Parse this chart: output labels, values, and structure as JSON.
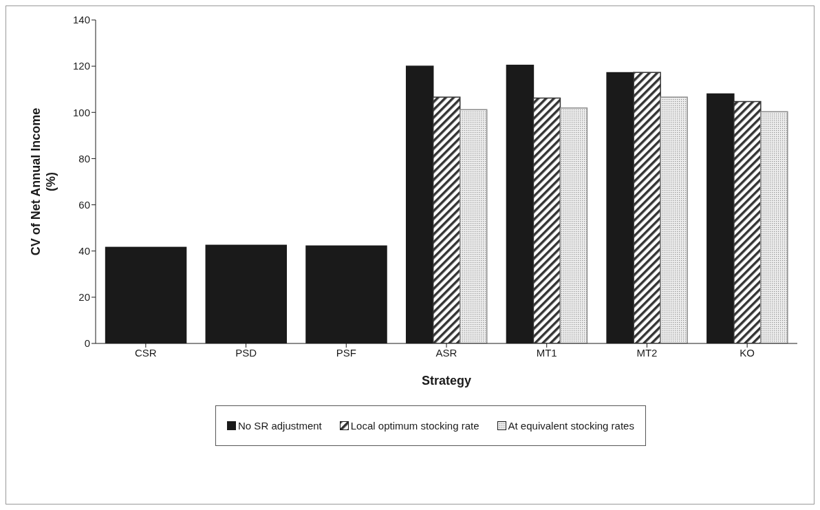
{
  "chart_data": {
    "type": "bar",
    "xlabel": "Strategy",
    "ylabel": "CV of Net Annual Income\n(%)",
    "categories": [
      "CSR",
      "PSD",
      "PSF",
      "ASR",
      "MT1",
      "MT2",
      "KO"
    ],
    "series": [
      {
        "name": "No SR adjustment",
        "color": "#1a1a1a",
        "values": [
          41.6,
          42.5,
          42.2,
          120,
          120.4,
          117.2,
          108
        ]
      },
      {
        "name": "Local optimum stocking rate",
        "color": "#333333",
        "values": [
          null,
          null,
          null,
          106.6,
          106.2,
          117.3,
          104.7
        ]
      },
      {
        "name": "At equivalent stocking rates",
        "color": "#8c8c8c",
        "values": [
          null,
          null,
          null,
          101.2,
          101.9,
          106.6,
          100.3
        ]
      }
    ],
    "ylim": [
      0,
      140
    ],
    "yticks": [
      0,
      20,
      40,
      60,
      80,
      100,
      120,
      140
    ],
    "grid": false,
    "legend": "bottom"
  }
}
